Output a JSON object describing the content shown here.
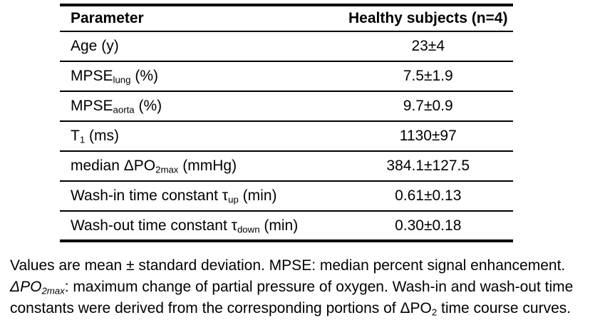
{
  "table": {
    "header": {
      "parameter": "Parameter",
      "value": "Healthy subjects (n=4)"
    },
    "rows": [
      {
        "parameter": [
          {
            "t": "Age (y)"
          }
        ],
        "value": "23±4"
      },
      {
        "parameter": [
          {
            "t": "MPSE"
          },
          {
            "t": "lung",
            "sub": true
          },
          {
            "t": " (%)"
          }
        ],
        "value": "7.5±1.9"
      },
      {
        "parameter": [
          {
            "t": "MPSE"
          },
          {
            "t": "aorta",
            "sub": true
          },
          {
            "t": " (%)"
          }
        ],
        "value": "9.7±0.9"
      },
      {
        "parameter": [
          {
            "t": "T"
          },
          {
            "t": "1",
            "sub": true
          },
          {
            "t": " (ms)"
          }
        ],
        "value": "1130±97"
      },
      {
        "parameter": [
          {
            "t": "median ΔPO"
          },
          {
            "t": "2max",
            "sub": true
          },
          {
            "t": " (mmHg)"
          }
        ],
        "value": "384.1±127.5"
      },
      {
        "parameter": [
          {
            "t": "Wash-in time constant τ"
          },
          {
            "t": "up",
            "sub": true
          },
          {
            "t": " (min)"
          }
        ],
        "value": "0.61±0.13"
      },
      {
        "parameter": [
          {
            "t": "Wash-out time constant τ"
          },
          {
            "t": "down",
            "sub": true
          },
          {
            "t": " (min)"
          }
        ],
        "value": "0.30±0.18"
      }
    ]
  },
  "caption": {
    "lines": [
      [
        {
          "t": "Values are mean ± standard deviation. MPSE: median percent signal enhancement."
        }
      ],
      [
        {
          "t": "ΔPO",
          "i": true
        },
        {
          "t": "2max",
          "sub": true,
          "i": true
        },
        {
          "t": ": maximum change of partial pressure of oxygen. Wash-in and wash-out time"
        }
      ],
      [
        {
          "t": "constants were derived from the corresponding portions of ΔPO"
        },
        {
          "t": "2",
          "sub": true
        },
        {
          "t": " time course curves."
        }
      ]
    ]
  },
  "colors": {
    "text": "#000000",
    "border": "#000000",
    "background": "#ffffff"
  }
}
